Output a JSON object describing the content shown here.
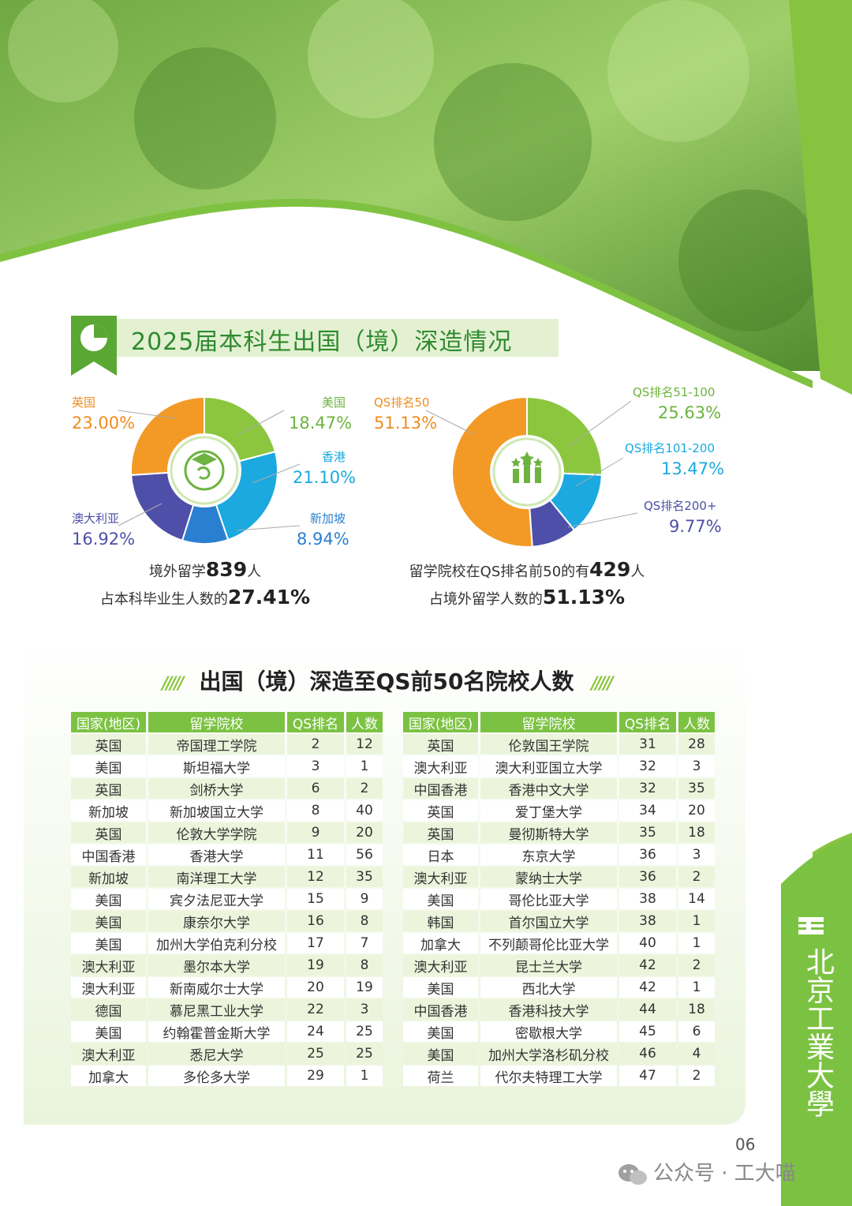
{
  "section_title": "2025届本科生出国（境）深造情况",
  "chart_data": [
    {
      "type": "pie",
      "categories": [
        "美国",
        "香港",
        "新加坡",
        "澳大利亚",
        "英国"
      ],
      "values": [
        18.47,
        21.1,
        8.94,
        16.92,
        23.0
      ],
      "value_labels": [
        "18.47%",
        "21.10%",
        "8.94%",
        "16.92%",
        "23.00%"
      ],
      "colors": [
        "#8cc63f",
        "#1ba9df",
        "#2b7fd0",
        "#4e4fa8",
        "#f39a26"
      ]
    },
    {
      "type": "pie",
      "categories": [
        "QS排名51-100",
        "QS排名101-200",
        "QS排名200+",
        "QS排名50"
      ],
      "values": [
        25.63,
        13.47,
        9.77,
        51.13
      ],
      "value_labels": [
        "25.63%",
        "13.47%",
        "9.77%",
        "51.13%"
      ],
      "colors": [
        "#8cc63f",
        "#1ba9df",
        "#4e4fa8",
        "#f39a26"
      ]
    }
  ],
  "summary_left": {
    "line1_prefix": "境外留学",
    "line1_num": "839",
    "line1_suffix": "人",
    "line2_prefix": "占本科毕业生人数的",
    "line2_num": "27.41%"
  },
  "summary_right": {
    "line1_prefix": "留学院校在QS排名前50的有",
    "line1_num": "429",
    "line1_suffix": "人",
    "line2_prefix": "占境外留学人数的",
    "line2_num": "51.13%"
  },
  "table_title": "出国（境）深造至QS前50名院校人数",
  "table_title_deco": "/////",
  "table_headers": [
    "国家(地区)",
    "留学院校",
    "QS排名",
    "人数"
  ],
  "table_left": [
    [
      "英国",
      "帝国理工学院",
      "2",
      "12"
    ],
    [
      "美国",
      "斯坦福大学",
      "3",
      "1"
    ],
    [
      "英国",
      "剑桥大学",
      "6",
      "2"
    ],
    [
      "新加坡",
      "新加坡国立大学",
      "8",
      "40"
    ],
    [
      "英国",
      "伦敦大学学院",
      "9",
      "20"
    ],
    [
      "中国香港",
      "香港大学",
      "11",
      "56"
    ],
    [
      "新加坡",
      "南洋理工大学",
      "12",
      "35"
    ],
    [
      "美国",
      "宾夕法尼亚大学",
      "15",
      "9"
    ],
    [
      "美国",
      "康奈尔大学",
      "16",
      "8"
    ],
    [
      "美国",
      "加州大学伯克利分校",
      "17",
      "7"
    ],
    [
      "澳大利亚",
      "墨尔本大学",
      "19",
      "8"
    ],
    [
      "澳大利亚",
      "新南威尔士大学",
      "20",
      "19"
    ],
    [
      "德国",
      "慕尼黑工业大学",
      "22",
      "3"
    ],
    [
      "美国",
      "约翰霍普金斯大学",
      "24",
      "25"
    ],
    [
      "澳大利亚",
      "悉尼大学",
      "25",
      "25"
    ],
    [
      "加拿大",
      "多伦多大学",
      "29",
      "1"
    ]
  ],
  "table_right": [
    [
      "英国",
      "伦敦国王学院",
      "31",
      "28"
    ],
    [
      "澳大利亚",
      "澳大利亚国立大学",
      "32",
      "3"
    ],
    [
      "中国香港",
      "香港中文大学",
      "32",
      "35"
    ],
    [
      "英国",
      "爱丁堡大学",
      "34",
      "20"
    ],
    [
      "英国",
      "曼彻斯特大学",
      "35",
      "18"
    ],
    [
      "日本",
      "东京大学",
      "36",
      "3"
    ],
    [
      "澳大利亚",
      "蒙纳士大学",
      "36",
      "2"
    ],
    [
      "美国",
      "哥伦比亚大学",
      "38",
      "14"
    ],
    [
      "韩国",
      "首尔国立大学",
      "38",
      "1"
    ],
    [
      "加拿大",
      "不列颠哥伦比亚大学",
      "40",
      "1"
    ],
    [
      "澳大利亚",
      "昆士兰大学",
      "42",
      "2"
    ],
    [
      "美国",
      "西北大学",
      "42",
      "1"
    ],
    [
      "中国香港",
      "香港科技大学",
      "44",
      "18"
    ],
    [
      "美国",
      "密歇根大学",
      "45",
      "6"
    ],
    [
      "美国",
      "加州大学洛杉矶分校",
      "46",
      "4"
    ],
    [
      "荷兰",
      "代尔夫特理工大学",
      "47",
      "2"
    ]
  ],
  "page_number": "06",
  "watermark": "公众号 · 工大喵",
  "logo_text": "北京工業大學",
  "icons": [
    "pie-chart-icon",
    "graduate-globe-icon",
    "ranking-bars-icon",
    "wechat-icon"
  ]
}
